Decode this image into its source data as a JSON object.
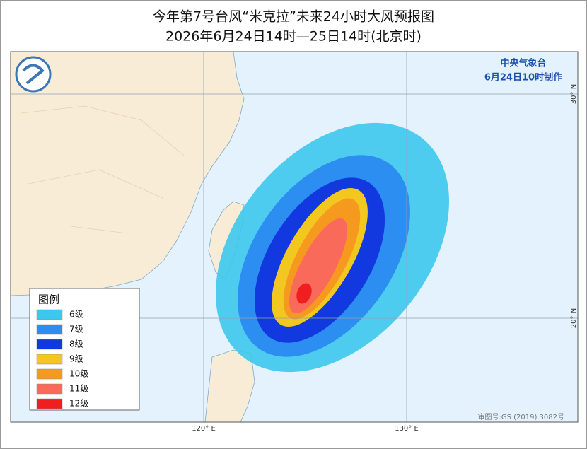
{
  "header": {
    "title": "今年第7号台风“米克拉”未来24小时大风预报图",
    "subtitle": "2026年6月24日14时—25日14时(北京时)"
  },
  "issuer": {
    "name": "中央气象台",
    "time": "6月24日10时制作"
  },
  "legend": {
    "title": "图例",
    "items": [
      {
        "label": "6级",
        "color": "#3cc8ee"
      },
      {
        "label": "7级",
        "color": "#2b8ef0"
      },
      {
        "label": "8级",
        "color": "#1238e0"
      },
      {
        "label": "9级",
        "color": "#f2c820"
      },
      {
        "label": "10级",
        "color": "#f59a1e"
      },
      {
        "label": "11级",
        "color": "#fa6a5a"
      },
      {
        "label": "12级",
        "color": "#f01e1e"
      }
    ]
  },
  "axes": {
    "longitudes": [
      "120° E",
      "130° E"
    ],
    "latitudes": [
      "30° N",
      "20° N"
    ]
  },
  "footer": "审图号:GS (2019) 3082号"
}
